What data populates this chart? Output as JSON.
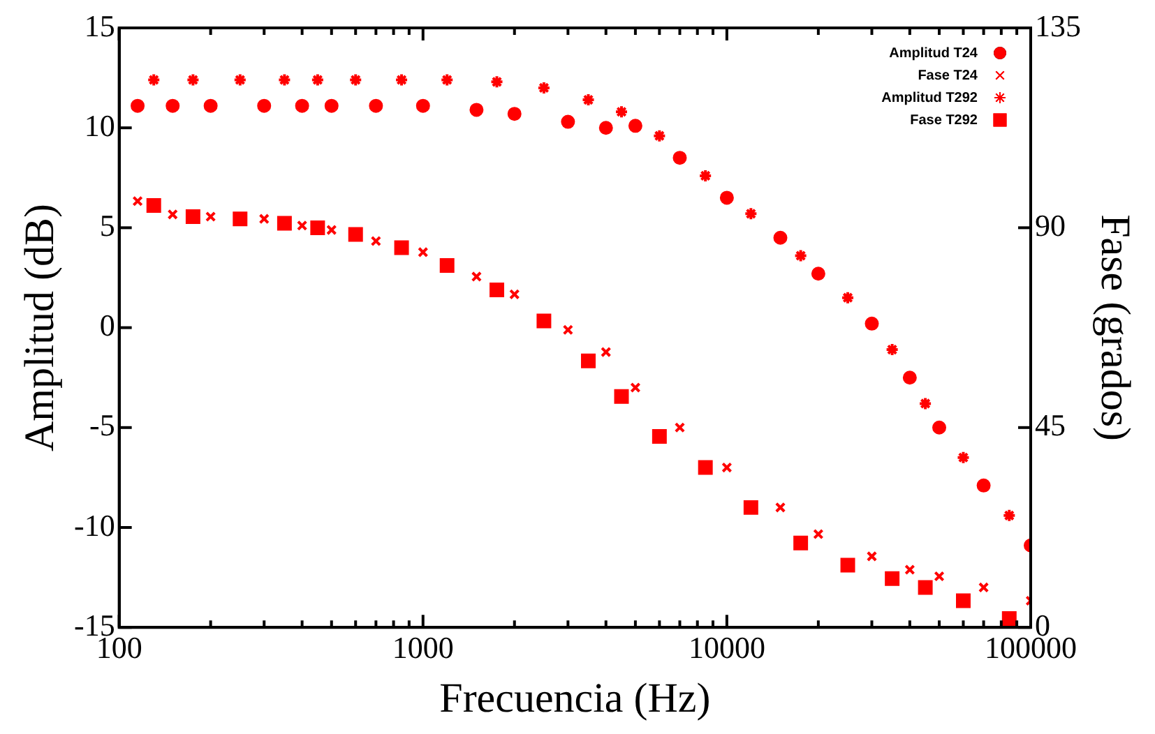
{
  "chart_data": {
    "type": "scatter",
    "xlabel": "Frecuencia (Hz)",
    "ylabel": "Amplitud (dB)",
    "y2label": "Fase (grados)",
    "log": "x",
    "grid": false,
    "legend": "top right",
    "x": [
      115,
      150,
      200,
      300,
      400,
      500,
      700,
      1000,
      1500,
      2000,
      3000,
      4000,
      5000,
      7000,
      10000,
      15000,
      20000,
      30000,
      40000,
      50000,
      70000,
      100000
    ],
    "xlim": [
      100,
      100000
    ],
    "xticks": [
      100,
      {
        "value": 200,
        "label": null
      },
      {
        "value": 300,
        "label": null
      },
      {
        "value": 400,
        "label": null
      },
      {
        "value": 500,
        "label": null
      },
      {
        "value": 600,
        "label": null
      },
      {
        "value": 700,
        "label": null
      },
      {
        "value": 800,
        "label": null
      },
      {
        "value": 900,
        "label": null
      },
      1000,
      {
        "value": 2000,
        "label": null
      },
      {
        "value": 3000,
        "label": null
      },
      {
        "value": 4000,
        "label": null
      },
      {
        "value": 5000,
        "label": null
      },
      {
        "value": 6000,
        "label": null
      },
      {
        "value": 7000,
        "label": null
      },
      {
        "value": 8000,
        "label": null
      },
      {
        "value": 9000,
        "label": null
      },
      10000,
      {
        "value": 20000,
        "label": null
      },
      {
        "value": 30000,
        "label": null
      },
      {
        "value": 40000,
        "label": null
      },
      {
        "value": 50000,
        "label": null
      },
      {
        "value": 60000,
        "label": null
      },
      {
        "value": 70000,
        "label": null
      },
      {
        "value": 80000,
        "label": null
      },
      {
        "value": 90000,
        "label": null
      },
      100000
    ],
    "ylim": [
      -15,
      15
    ],
    "yticks": [
      -15,
      -10,
      -5,
      0,
      5,
      10,
      15
    ],
    "y2lim": [
      0,
      135
    ],
    "y2ticks": [
      0,
      45,
      90,
      135
    ],
    "series": [
      {
        "name": "Amplitud T24",
        "color": "#ff0000",
        "marker": "circle",
        "values": [
          11.1,
          11.1,
          11.1,
          11.1,
          11.1,
          11.1,
          11.1,
          11.1,
          10.9,
          10.7,
          10.3,
          10.0,
          10.1,
          8.5,
          6.5,
          4.5,
          2.7,
          0.2,
          -2.5,
          -5.0,
          -7.9,
          -10.9
        ]
      },
      {
        "name": "Fase T24",
        "color": "#ff0000",
        "marker": "cross",
        "axis": "y2",
        "values": [
          96,
          93,
          92.5,
          92,
          90.5,
          89.5,
          87,
          84.5,
          79,
          75,
          67,
          62,
          54,
          45,
          36,
          27,
          21,
          16,
          13,
          11.5,
          9,
          6
        ]
      },
      {
        "name": "Amplitud T292",
        "color": "#ff0000",
        "x": [
          130,
          175,
          250,
          350,
          450,
          600,
          850,
          1200,
          1750,
          2500,
          3500,
          4500,
          6000,
          8500,
          12000,
          17500,
          25000,
          35000,
          45000,
          60000,
          85000
        ],
        "values": [
          12.4,
          12.4,
          12.4,
          12.4,
          12.4,
          12.4,
          12.4,
          12.4,
          12.3,
          12.0,
          11.4,
          10.8,
          9.6,
          7.6,
          5.7,
          3.6,
          1.5,
          -1.1,
          -3.8,
          -6.5,
          -9.4
        ]
      },
      {
        "name": "Fase T292",
        "color": "#ff0000",
        "marker": "square",
        "axis": "y2",
        "x": [
          130,
          175,
          250,
          350,
          450,
          600,
          850,
          1200,
          1750,
          2500,
          3500,
          4500,
          6000,
          8500,
          12000,
          17500,
          25000,
          35000,
          45000,
          60000,
          85000
        ],
        "values": [
          95,
          92.5,
          92,
          91,
          90,
          88.5,
          85.5,
          81.5,
          76,
          69,
          60,
          52,
          43,
          36,
          27,
          19,
          14,
          11,
          9,
          6,
          2
        ]
      }
    ]
  }
}
